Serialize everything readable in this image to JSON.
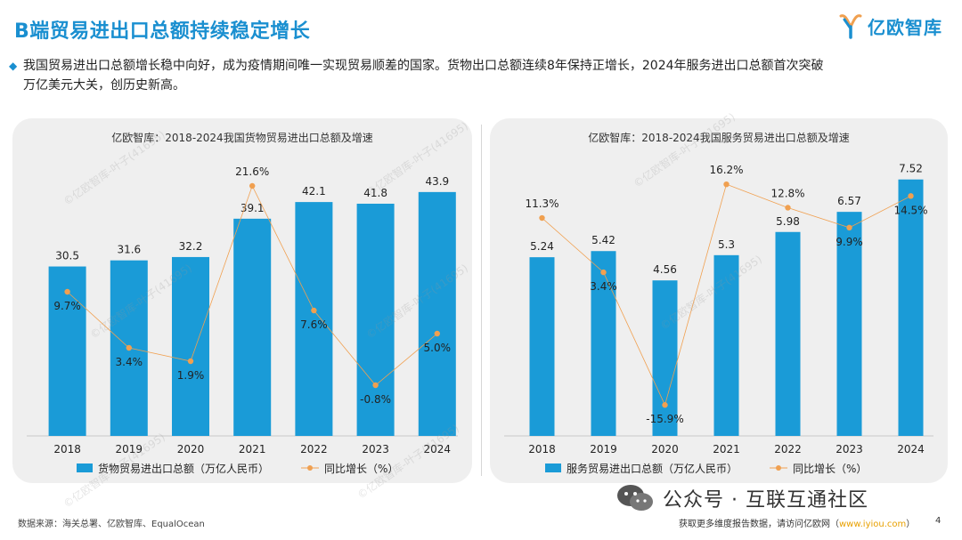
{
  "header": {
    "title": "B端贸易进出口总额持续稳定增长",
    "brand": "亿欧智库"
  },
  "intro": {
    "line1": "我国贸易进出口总额增长稳中向好，成为疫情期间唯一实现贸易顺差的国家。货物出口总额连续8年保持正增长，2024年服务进出口总额首次突破",
    "line2": "万亿美元大关，创历史新高。"
  },
  "chart_data": [
    {
      "type": "bar",
      "title": "亿欧智库：2018-2024我国货物贸易进出口总额及增速",
      "categories": [
        "2018",
        "2019",
        "2020",
        "2021",
        "2022",
        "2023",
        "2024"
      ],
      "series": [
        {
          "name": "货物贸易进出口总额（万亿人民币）",
          "kind": "bar",
          "values": [
            30.5,
            31.6,
            32.2,
            39.1,
            42.1,
            41.8,
            43.9
          ],
          "labels": [
            "30.5",
            "31.6",
            "32.2",
            "39.1",
            "42.1",
            "41.8",
            "43.9"
          ]
        },
        {
          "name": "同比增长（%）",
          "kind": "line",
          "values": [
            9.7,
            3.4,
            1.9,
            21.6,
            7.6,
            -0.8,
            5.0
          ],
          "labels": [
            "9.7%",
            "3.4%",
            "1.9%",
            "21.6%",
            "7.6%",
            "-0.8%",
            "5.0%"
          ]
        }
      ],
      "colors": {
        "bar": "#1a9bd7",
        "line": "#f0a050"
      },
      "legend": "bottom"
    },
    {
      "type": "bar",
      "title": "亿欧智库：2018-2024我国服务贸易进出口总额及增速",
      "categories": [
        "2018",
        "2019",
        "2020",
        "2021",
        "2022",
        "2023",
        "2024"
      ],
      "series": [
        {
          "name": "服务贸易进出口总额（万亿人民币）",
          "kind": "bar",
          "values": [
            5.24,
            5.42,
            4.56,
            5.3,
            5.98,
            6.57,
            7.52
          ],
          "labels": [
            "5.24",
            "5.42",
            "4.56",
            "5.3",
            "5.98",
            "6.57",
            "7.52"
          ]
        },
        {
          "name": "同比增长（%）",
          "kind": "line",
          "values": [
            11.3,
            3.4,
            -15.9,
            16.2,
            12.8,
            9.9,
            14.5
          ],
          "labels": [
            "11.3%",
            "3.4%",
            "-15.9%",
            "16.2%",
            "12.8%",
            "9.9%",
            "14.5%"
          ]
        }
      ],
      "colors": {
        "bar": "#1a9bd7",
        "line": "#f0a050"
      },
      "legend": "bottom"
    }
  ],
  "footer": {
    "source": "数据来源：海关总署、亿欧智库、EqualOcean",
    "more_prefix": "获取更多维度报告数据，请访问亿欧网（",
    "more_link": "www.iyiou.com",
    "more_suffix": "）",
    "page": "4",
    "wechat": "公众号 · 互联互通社区"
  }
}
